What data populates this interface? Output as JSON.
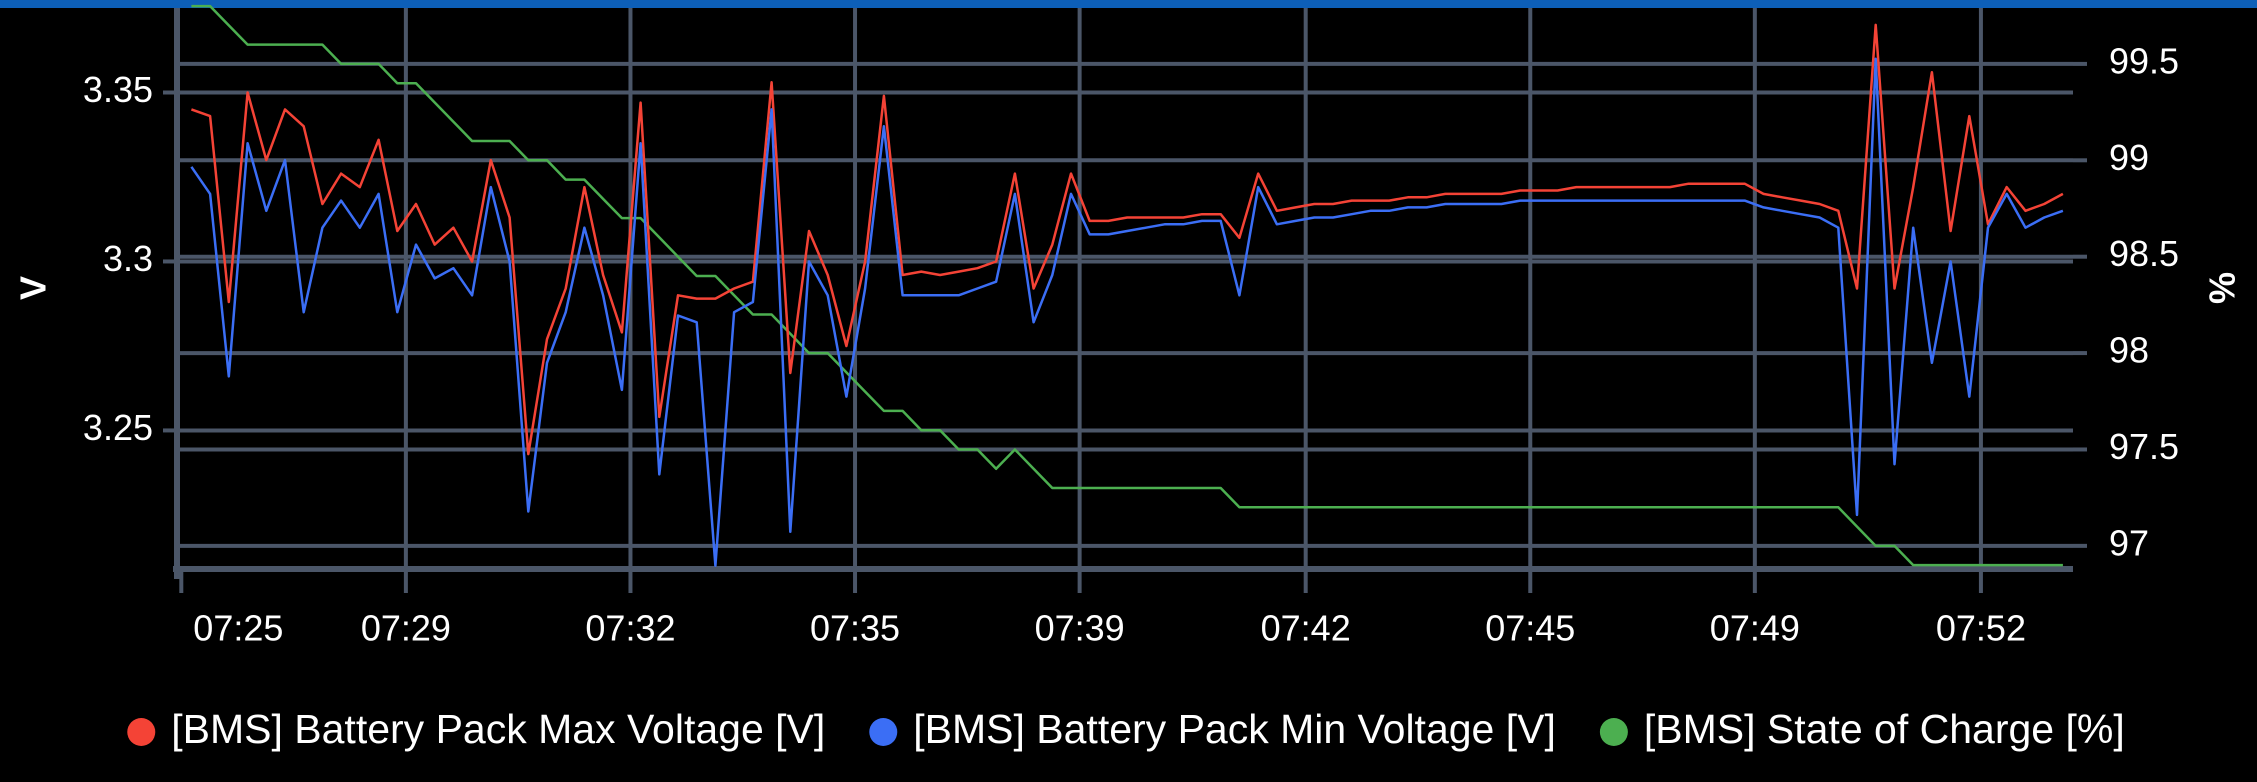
{
  "chart_data": {
    "type": "line",
    "ylabel": "V",
    "y2label": "%",
    "xlim": [
      -0.77,
      100.54
    ],
    "xticks": [
      {
        "value": -0.54,
        "label": "07:25"
      },
      {
        "value": 11.46,
        "label": "07:29"
      },
      {
        "value": 23.46,
        "label": "07:32"
      },
      {
        "value": 35.46,
        "label": "07:35"
      },
      {
        "value": 47.46,
        "label": "07:39"
      },
      {
        "value": 59.54,
        "label": "07:42"
      },
      {
        "value": 71.54,
        "label": "07:45"
      },
      {
        "value": 83.54,
        "label": "07:49"
      },
      {
        "value": 95.62,
        "label": "07:52"
      }
    ],
    "ylim": [
      3.209,
      3.375
    ],
    "yticks": [
      3.25,
      3.3,
      3.35
    ],
    "y2lim": [
      96.88,
      99.79
    ],
    "y2ticks": [
      97,
      97.5,
      98,
      98.5,
      99,
      99.5
    ],
    "grid": true,
    "legend": "bottom",
    "series": [
      {
        "name": "[BMS] Battery Pack Max Voltage [V]",
        "color": "#f44336",
        "values": [
          3.345,
          3.343,
          3.288,
          3.35,
          3.33,
          3.345,
          3.34,
          3.317,
          3.326,
          3.322,
          3.336,
          3.309,
          3.317,
          3.305,
          3.31,
          3.3,
          3.33,
          3.313,
          3.243,
          3.277,
          3.292,
          3.322,
          3.296,
          3.279,
          3.347,
          3.254,
          3.29,
          3.289,
          3.289,
          3.292,
          3.294,
          3.353,
          3.267,
          3.309,
          3.296,
          3.275,
          3.3,
          3.349,
          3.296,
          3.297,
          3.296,
          3.297,
          3.298,
          3.3,
          3.326,
          3.292,
          3.305,
          3.326,
          3.312,
          3.312,
          3.313,
          3.313,
          3.313,
          3.313,
          3.314,
          3.314,
          3.307,
          3.326,
          3.315,
          3.316,
          3.317,
          3.317,
          3.318,
          3.318,
          3.318,
          3.319,
          3.319,
          3.32,
          3.32,
          3.32,
          3.32,
          3.321,
          3.321,
          3.321,
          3.322,
          3.322,
          3.322,
          3.322,
          3.322,
          3.322,
          3.323,
          3.323,
          3.323,
          3.323,
          3.32,
          3.319,
          3.318,
          3.317,
          3.315,
          3.292,
          3.37,
          3.292,
          3.322,
          3.356,
          3.309,
          3.343,
          3.311,
          3.322,
          3.315,
          3.317,
          3.32
        ]
      },
      {
        "name": "[BMS] Battery Pack Min Voltage [V]",
        "color": "#3b6ef5",
        "values": [
          3.328,
          3.32,
          3.266,
          3.335,
          3.315,
          3.33,
          3.285,
          3.31,
          3.318,
          3.31,
          3.32,
          3.285,
          3.305,
          3.295,
          3.298,
          3.29,
          3.322,
          3.3,
          3.226,
          3.27,
          3.285,
          3.31,
          3.29,
          3.262,
          3.335,
          3.237,
          3.284,
          3.282,
          3.21,
          3.285,
          3.288,
          3.345,
          3.22,
          3.3,
          3.29,
          3.26,
          3.292,
          3.34,
          3.29,
          3.29,
          3.29,
          3.29,
          3.292,
          3.294,
          3.32,
          3.282,
          3.296,
          3.32,
          3.308,
          3.308,
          3.309,
          3.31,
          3.311,
          3.311,
          3.312,
          3.312,
          3.29,
          3.322,
          3.311,
          3.312,
          3.313,
          3.313,
          3.314,
          3.315,
          3.315,
          3.316,
          3.316,
          3.317,
          3.317,
          3.317,
          3.317,
          3.318,
          3.318,
          3.318,
          3.318,
          3.318,
          3.318,
          3.318,
          3.318,
          3.318,
          3.318,
          3.318,
          3.318,
          3.318,
          3.316,
          3.315,
          3.314,
          3.313,
          3.31,
          3.225,
          3.36,
          3.24,
          3.31,
          3.27,
          3.3,
          3.26,
          3.31,
          3.32,
          3.31,
          3.313,
          3.315
        ]
      },
      {
        "name": "[BMS] State of Charge [%]",
        "color": "#4caf50",
        "axis": "y2",
        "values": [
          99.8,
          99.8,
          99.7,
          99.6,
          99.6,
          99.6,
          99.6,
          99.6,
          99.5,
          99.5,
          99.5,
          99.4,
          99.4,
          99.3,
          99.2,
          99.1,
          99.1,
          99.1,
          99,
          99,
          98.9,
          98.9,
          98.8,
          98.7,
          98.7,
          98.6,
          98.5,
          98.4,
          98.4,
          98.3,
          98.2,
          98.2,
          98.1,
          98,
          98,
          97.9,
          97.8,
          97.7,
          97.7,
          97.6,
          97.6,
          97.5,
          97.5,
          97.4,
          97.5,
          97.4,
          97.3,
          97.3,
          97.3,
          97.3,
          97.3,
          97.3,
          97.3,
          97.3,
          97.3,
          97.3,
          97.2,
          97.2,
          97.2,
          97.2,
          97.2,
          97.2,
          97.2,
          97.2,
          97.2,
          97.2,
          97.2,
          97.2,
          97.2,
          97.2,
          97.2,
          97.2,
          97.2,
          97.2,
          97.2,
          97.2,
          97.2,
          97.2,
          97.2,
          97.2,
          97.2,
          97.2,
          97.2,
          97.2,
          97.2,
          97.2,
          97.2,
          97.2,
          97.2,
          97.1,
          97,
          97,
          96.9,
          96.9,
          96.9,
          96.9,
          96.9,
          96.9,
          96.9,
          96.9,
          96.9
        ]
      }
    ]
  }
}
